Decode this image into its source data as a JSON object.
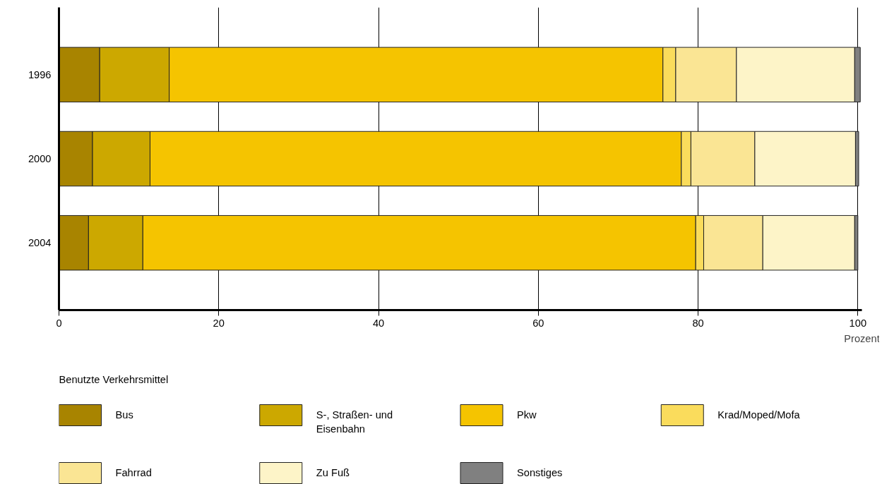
{
  "chart_data": {
    "type": "bar",
    "orientation": "horizontal",
    "stacked": true,
    "categories": [
      "1996",
      "2000",
      "2004"
    ],
    "xlabel": "Prozent",
    "legend_title": "Benutzte Verkehrsmittel",
    "xlim": [
      0,
      100.5
    ],
    "xticks": [
      0,
      20,
      40,
      60,
      80,
      100
    ],
    "grid": "x",
    "legend": "bottom",
    "series": [
      {
        "name": "Bus",
        "color": "#a88400",
        "values": [
          5.1,
          4.2,
          3.7
        ]
      },
      {
        "name": "S-, Straßen- und Eisenbahn",
        "color": "#cca800",
        "values": [
          8.7,
          7.2,
          6.8
        ]
      },
      {
        "name": "Pkw",
        "color": "#f5c400",
        "values": [
          61.8,
          66.5,
          69.2
        ]
      },
      {
        "name": "Krad/Moped/Mofa",
        "color": "#fadc5c",
        "values": [
          1.6,
          1.2,
          1.0
        ]
      },
      {
        "name": "Fahrrad",
        "color": "#fae594",
        "values": [
          7.6,
          8.0,
          7.4
        ]
      },
      {
        "name": "Zu Fuß",
        "color": "#fdf4c8",
        "values": [
          14.8,
          12.6,
          11.5
        ]
      },
      {
        "name": "Sonstiges",
        "color": "#808080",
        "values": [
          0.7,
          0.4,
          0.4
        ]
      }
    ]
  }
}
